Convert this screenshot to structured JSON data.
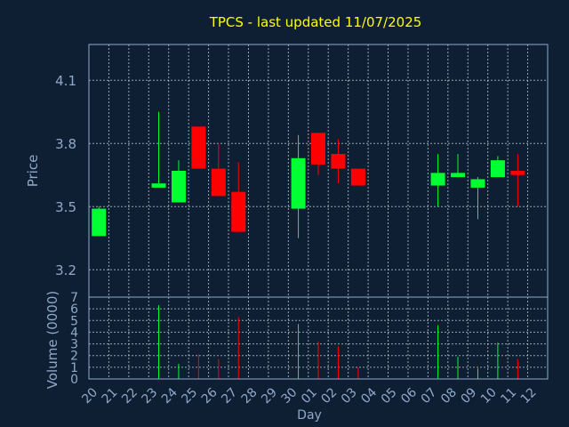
{
  "chart_data": {
    "type": "candlestick",
    "title": "TPCS - last updated 11/07/2025",
    "up_color": "#00ff33",
    "down_color": "#ff0000",
    "background_color": "#0f1f33",
    "text_color": "#8fa8c8",
    "title_color": "#ffff00",
    "grid": true,
    "price_panel": {
      "ylabel": "Price",
      "ylim": [
        3.07,
        4.27
      ],
      "yticks": [
        "3.2",
        "3.5",
        "3.8",
        "4.1"
      ]
    },
    "volume_panel": {
      "ylabel": "Volume (0000)",
      "ylim": [
        0,
        7
      ],
      "yticks": [
        "0",
        "1",
        "2",
        "3",
        "4",
        "5",
        "6",
        "7"
      ]
    },
    "xlabel": "Day",
    "x_tick_labels": [
      "20",
      "21",
      "22",
      "23",
      "24",
      "25",
      "26",
      "27",
      "28",
      "29",
      "30",
      "01",
      "02",
      "03",
      "04",
      "05",
      "06",
      "07",
      "08",
      "09",
      "10",
      "11",
      "12"
    ],
    "candles": [
      {
        "day": "20",
        "open": 3.36,
        "high": 3.5,
        "low": 3.36,
        "close": 3.49,
        "volume": 0
      },
      {
        "day": "23",
        "open": 3.59,
        "high": 3.95,
        "low": 3.59,
        "close": 3.61,
        "volume": 6.3
      },
      {
        "day": "24",
        "open": 3.52,
        "high": 3.72,
        "low": 3.52,
        "close": 3.67,
        "volume": 1.3
      },
      {
        "day": "25",
        "open": 3.88,
        "high": 3.88,
        "low": 3.68,
        "close": 3.68,
        "volume": 2.1
      },
      {
        "day": "26",
        "open": 3.68,
        "high": 3.8,
        "low": 3.55,
        "close": 3.55,
        "volume": 1.7
      },
      {
        "day": "27",
        "open": 3.57,
        "high": 3.71,
        "low": 3.38,
        "close": 3.38,
        "volume": 5.3
      },
      {
        "day": "30",
        "open": 3.49,
        "high": 3.84,
        "low": 3.35,
        "close": 3.73,
        "volume": 4.7
      },
      {
        "day": "01",
        "open": 3.85,
        "high": 3.85,
        "low": 3.65,
        "close": 3.7,
        "volume": 3.2
      },
      {
        "day": "02",
        "open": 3.75,
        "high": 3.82,
        "low": 3.61,
        "close": 3.68,
        "volume": 2.8
      },
      {
        "day": "03",
        "open": 3.68,
        "high": 3.68,
        "low": 3.6,
        "close": 3.6,
        "volume": 1.0
      },
      {
        "day": "07",
        "open": 3.6,
        "high": 3.75,
        "low": 3.5,
        "close": 3.66,
        "volume": 4.6
      },
      {
        "day": "08",
        "open": 3.64,
        "high": 3.75,
        "low": 3.64,
        "close": 3.66,
        "volume": 1.9
      },
      {
        "day": "09",
        "open": 3.59,
        "high": 3.64,
        "low": 3.44,
        "close": 3.63,
        "volume": 0.9
      },
      {
        "day": "10",
        "open": 3.64,
        "high": 3.74,
        "low": 3.64,
        "close": 3.72,
        "volume": 3.1
      },
      {
        "day": "11",
        "open": 3.67,
        "high": 3.75,
        "low": 3.5,
        "close": 3.65,
        "volume": 1.7
      }
    ]
  }
}
